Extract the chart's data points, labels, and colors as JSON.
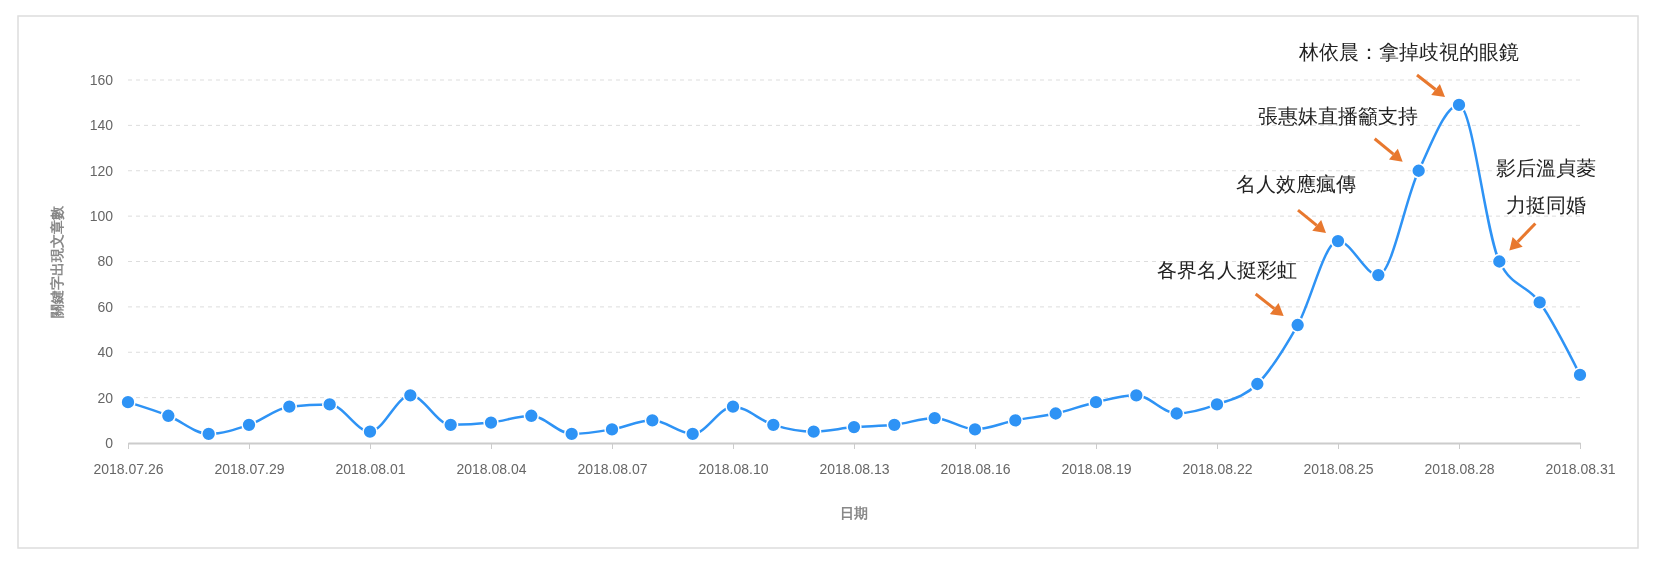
{
  "chart_data": {
    "type": "line",
    "xlabel": "日期",
    "ylabel": "關鍵字出現文章數",
    "x": [
      "2018-07-26",
      "2018-07-27",
      "2018-07-28",
      "2018-07-29",
      "2018-07-30",
      "2018-07-31",
      "2018-08-01",
      "2018-08-02",
      "2018-08-03",
      "2018-08-04",
      "2018-08-05",
      "2018-08-06",
      "2018-08-07",
      "2018-08-08",
      "2018-08-09",
      "2018-08-10",
      "2018-08-11",
      "2018-08-12",
      "2018-08-13",
      "2018-08-14",
      "2018-08-15",
      "2018-08-16",
      "2018-08-17",
      "2018-08-18",
      "2018-08-19",
      "2018-08-20",
      "2018-08-21",
      "2018-08-22",
      "2018-08-23",
      "2018-08-24",
      "2018-08-25",
      "2018-08-26",
      "2018-08-27",
      "2018-08-28",
      "2018-08-29",
      "2018-08-30",
      "2018-08-31"
    ],
    "series": [
      {
        "color": "#2e93f5",
        "values": [
          18,
          12,
          4,
          8,
          16,
          17,
          5,
          21,
          8,
          9,
          12,
          4,
          6,
          10,
          4,
          16,
          8,
          5,
          7,
          8,
          11,
          6,
          10,
          13,
          18,
          21,
          13,
          17,
          26,
          52,
          89,
          74,
          120,
          149,
          80,
          62,
          30
        ]
      }
    ],
    "xlim": [
      "2018-07-26",
      "2018-08-31"
    ],
    "xticks": [
      {
        "value": "2018-07-26",
        "label": "2018.07.26"
      },
      {
        "value": "2018-07-29",
        "label": "2018.07.29"
      },
      {
        "value": "2018-08-01",
        "label": "2018.08.01"
      },
      {
        "value": "2018-08-04",
        "label": "2018.08.04"
      },
      {
        "value": "2018-08-07",
        "label": "2018.08.07"
      },
      {
        "value": "2018-08-10",
        "label": "2018.08.10"
      },
      {
        "value": "2018-08-13",
        "label": "2018.08.13"
      },
      {
        "value": "2018-08-16",
        "label": "2018.08.16"
      },
      {
        "value": "2018-08-19",
        "label": "2018.08.19"
      },
      {
        "value": "2018-08-22",
        "label": "2018.08.22"
      },
      {
        "value": "2018-08-25",
        "label": "2018.08.25"
      },
      {
        "value": "2018-08-28",
        "label": "2018.08.28"
      },
      {
        "value": "2018-08-31",
        "label": "2018.08.31"
      }
    ],
    "ylim": [
      0,
      160
    ],
    "yticks": [
      0,
      20,
      40,
      60,
      80,
      100,
      120,
      140,
      160
    ],
    "grid": "y",
    "marker": "circle",
    "line_style": "solid",
    "annotations": [
      {
        "text": "各界名人挺彩虹",
        "x": "2018-08-24",
        "y": 52
      },
      {
        "text": "名人效應瘋傳",
        "x": "2018-08-25",
        "y": 89
      },
      {
        "text": "張惠妹直播籲支持",
        "x": "2018-08-27",
        "y": 120
      },
      {
        "text": "林依晨：拿掉歧視的眼鏡",
        "x": "2018-08-28",
        "y": 149
      },
      "影后溫貞菱",
      {
        "text": "力挺同婚",
        "x": "2018-08-29",
        "y": 80
      }
    ]
  }
}
